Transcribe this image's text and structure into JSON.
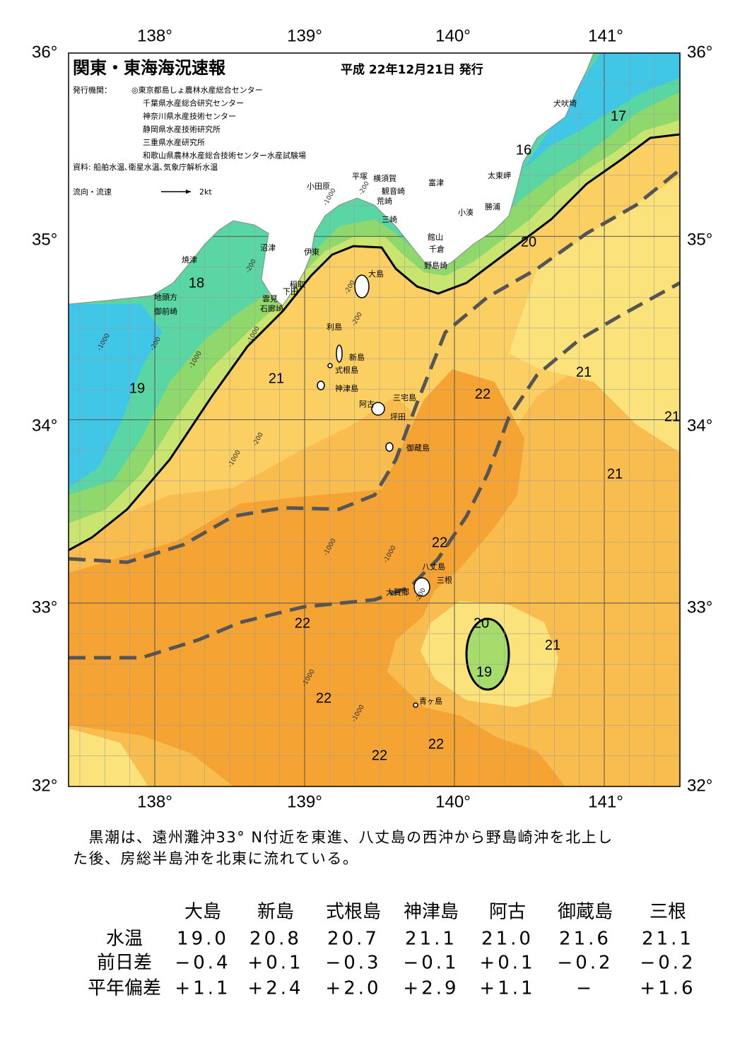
{
  "header": {
    "title": "関東・東海海況速報",
    "date": "平成 22年12月21日 発行",
    "publisher_label": "発行機関：",
    "publishers": [
      "◎東京都島しょ農林水産総合センター",
      "千葉県水産総合研究センター",
      "神奈川県水産技術センター",
      "静岡県水産技術研究所",
      "三重県水産研究所",
      "和歌山県農林水産総合技術センター水産試験場"
    ],
    "source": "資料: 船舶水温､衛星水温､気象庁解析水温",
    "legend_label": "流向・流速",
    "legend_scale": "2kt"
  },
  "axes": {
    "longitude": [
      "138°",
      "139°",
      "140°",
      "141°"
    ],
    "latitude": [
      "36°",
      "35°",
      "34°",
      "33°",
      "32°"
    ]
  },
  "places": [
    "犬吠埼",
    "太東岬",
    "勝浦",
    "小湊",
    "富津",
    "横須賀",
    "平塚",
    "観音崎",
    "小田原",
    "荒崎",
    "三崎",
    "館山",
    "千倉",
    "野島崎",
    "沼津",
    "伊東",
    "焼津",
    "稲取",
    "下田",
    "雲見",
    "石廊崎",
    "地頭方",
    "御前崎",
    "大島",
    "利島",
    "新島",
    "式根島",
    "神津島",
    "三宅島",
    "阿古",
    "坪田",
    "御蔵島",
    "八丈島",
    "三根",
    "大賀郷",
    "青ヶ島"
  ],
  "temperature_labels": [
    "17",
    "16",
    "20",
    "18",
    "21",
    "19",
    "22",
    "21",
    "21",
    "21",
    "22",
    "22",
    "20",
    "21",
    "19",
    "22",
    "22",
    "22"
  ],
  "depth_labels": [
    "-200",
    "-1000",
    "-200",
    "-1000",
    "-200",
    "-200",
    "-1000",
    "-200",
    "-1000",
    "-200",
    "-1000",
    "-1000",
    "-200",
    "-1000",
    "-1000",
    "-1000"
  ],
  "description": "　黒潮は、遠州灘沖33° N付近を東進、八丈島の西沖から野島崎沖を北上した後、房総半島沖を北東に流れている。",
  "table": {
    "columns": [
      "大島",
      "新島",
      "式根島",
      "神津島",
      "阿古",
      "御蔵島",
      "三根"
    ],
    "rows": [
      {
        "label": "水温",
        "cells": [
          "19.0",
          "20.8",
          "20.7",
          "21.1",
          "21.0",
          "21.6",
          "21.1"
        ]
      },
      {
        "label": "前日差",
        "cells": [
          "−0.4",
          "+0.1",
          "−0.3",
          "−0.1",
          "+0.1",
          "−0.2",
          "−0.2"
        ]
      },
      {
        "label": "平年偏差",
        "cells": [
          "+1.1",
          "+2.4",
          "+2.0",
          "+2.9",
          "+1.1",
          "−",
          "+1.6"
        ]
      }
    ]
  }
}
